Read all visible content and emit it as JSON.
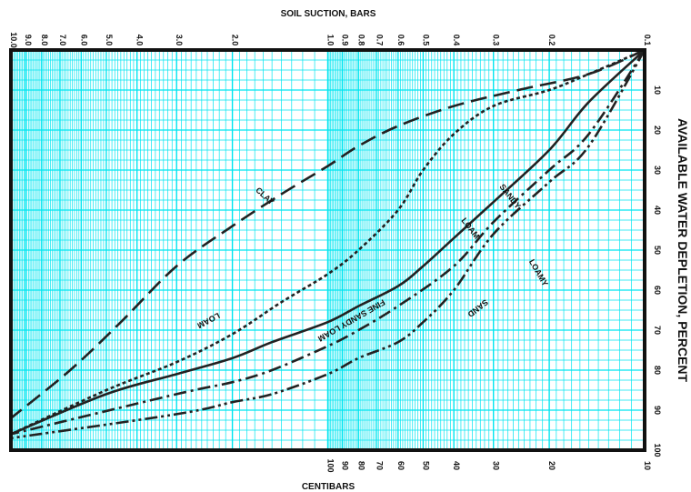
{
  "chart_data": {
    "type": "line",
    "title": "",
    "top_axis_label": "SOIL SUCTION, BARS",
    "bottom_axis_label": "CENTIBARS",
    "right_axis_label": "AVAILABLE WATER DEPLETION, PERCENT",
    "x_scale": "log",
    "x_range_bars": [
      0.1,
      10.0
    ],
    "y_range_percent": [
      0,
      100
    ],
    "grid": true,
    "grid_color": "#00e5f0",
    "frame_color": "#111111",
    "top_ticks": [
      {
        "value": 10.0,
        "label": "10.0"
      },
      {
        "value": 9.0,
        "label": "9.0"
      },
      {
        "value": 8.0,
        "label": "8.0"
      },
      {
        "value": 7.0,
        "label": "7.0"
      },
      {
        "value": 6.0,
        "label": "6.0"
      },
      {
        "value": 5.0,
        "label": "5.0"
      },
      {
        "value": 4.0,
        "label": "4.0"
      },
      {
        "value": 3.0,
        "label": "3.0"
      },
      {
        "value": 2.0,
        "label": "2.0"
      },
      {
        "value": 1.0,
        "label": "1.0"
      },
      {
        "value": 0.9,
        "label": "0.9"
      },
      {
        "value": 0.8,
        "label": "0.8"
      },
      {
        "value": 0.7,
        "label": "0.7"
      },
      {
        "value": 0.6,
        "label": "0.6"
      },
      {
        "value": 0.5,
        "label": "0.5"
      },
      {
        "value": 0.4,
        "label": "0.4"
      },
      {
        "value": 0.3,
        "label": "0.3"
      },
      {
        "value": 0.2,
        "label": "0.2"
      },
      {
        "value": 0.1,
        "label": "0.1"
      }
    ],
    "bottom_ticks": [
      {
        "value": 1.0,
        "label": "100"
      },
      {
        "value": 0.9,
        "label": "90"
      },
      {
        "value": 0.8,
        "label": "80"
      },
      {
        "value": 0.7,
        "label": "70"
      },
      {
        "value": 0.6,
        "label": "60"
      },
      {
        "value": 0.5,
        "label": "50"
      },
      {
        "value": 0.4,
        "label": "40"
      },
      {
        "value": 0.3,
        "label": "30"
      },
      {
        "value": 0.2,
        "label": "20"
      },
      {
        "value": 0.1,
        "label": "10"
      }
    ],
    "right_ticks": [
      {
        "value": 10,
        "label": "10"
      },
      {
        "value": 20,
        "label": "20"
      },
      {
        "value": 30,
        "label": "30"
      },
      {
        "value": 40,
        "label": "40"
      },
      {
        "value": 50,
        "label": "50"
      },
      {
        "value": 60,
        "label": "60"
      },
      {
        "value": 70,
        "label": "70"
      },
      {
        "value": 80,
        "label": "80"
      },
      {
        "value": 90,
        "label": "90"
      },
      {
        "value": 100,
        "label": "100"
      }
    ],
    "series": [
      {
        "name": "CLAY",
        "dash": "long",
        "points": [
          [
            0.1,
            0
          ],
          [
            0.15,
            6
          ],
          [
            0.25,
            10
          ],
          [
            0.4,
            14
          ],
          [
            0.6,
            19
          ],
          [
            0.8,
            24
          ],
          [
            1.0,
            29
          ],
          [
            1.4,
            36
          ],
          [
            2.0,
            44
          ],
          [
            3.0,
            54
          ],
          [
            4.5,
            68
          ],
          [
            6.5,
            80
          ],
          [
            10.0,
            92
          ]
        ]
      },
      {
        "name": "LOAM",
        "dash": "short",
        "points": [
          [
            0.1,
            0
          ],
          [
            0.15,
            6
          ],
          [
            0.2,
            10
          ],
          [
            0.3,
            14
          ],
          [
            0.4,
            21
          ],
          [
            0.5,
            30
          ],
          [
            0.6,
            40
          ],
          [
            0.8,
            50
          ],
          [
            1.0,
            56
          ],
          [
            1.4,
            63
          ],
          [
            2.0,
            71
          ],
          [
            3.0,
            78
          ],
          [
            5.0,
            85
          ],
          [
            10.0,
            96
          ]
        ]
      },
      {
        "name": "SANDY LOAM",
        "dash": "solid",
        "points": [
          [
            0.1,
            0
          ],
          [
            0.15,
            13
          ],
          [
            0.2,
            25
          ],
          [
            0.3,
            38
          ],
          [
            0.4,
            47
          ],
          [
            0.5,
            54
          ],
          [
            0.6,
            59
          ],
          [
            0.8,
            64
          ],
          [
            1.0,
            68
          ],
          [
            1.5,
            73
          ],
          [
            2.0,
            77
          ],
          [
            3.0,
            81
          ],
          [
            5.0,
            86
          ],
          [
            10.0,
            96
          ]
        ]
      },
      {
        "name": "FINE SANDY LOAM",
        "dash": "dashdot",
        "points": [
          [
            0.1,
            0
          ],
          [
            0.15,
            21
          ],
          [
            0.2,
            30
          ],
          [
            0.3,
            43
          ],
          [
            0.4,
            54
          ],
          [
            0.6,
            64
          ],
          [
            0.8,
            70
          ],
          [
            1.0,
            74
          ],
          [
            1.5,
            80
          ],
          [
            2.0,
            83
          ],
          [
            3.0,
            86
          ],
          [
            10.0,
            96
          ]
        ]
      },
      {
        "name": "LOAMY SAND",
        "dash": "dashdotdot",
        "points": [
          [
            0.1,
            0
          ],
          [
            0.15,
            24
          ],
          [
            0.2,
            33
          ],
          [
            0.3,
            46
          ],
          [
            0.4,
            60
          ],
          [
            0.5,
            68
          ],
          [
            0.6,
            73
          ],
          [
            0.8,
            77
          ],
          [
            1.0,
            81
          ],
          [
            1.5,
            86
          ],
          [
            2.0,
            88
          ],
          [
            3.0,
            91
          ],
          [
            10.0,
            97
          ]
        ]
      }
    ],
    "curve_labels": [
      {
        "text": "CLAY",
        "x": 1.6,
        "y": 37,
        "angle": 42
      },
      {
        "text": "LOAM",
        "x": 2.4,
        "y": 67,
        "angle": 152
      },
      {
        "text": "SANDY",
        "x": 0.27,
        "y": 37,
        "angle": 52
      },
      {
        "text": "LOAM",
        "x": 0.36,
        "y": 45,
        "angle": 52
      },
      {
        "text": "FINE SANDY LOAM",
        "x": 0.85,
        "y": 67,
        "angle": 150
      },
      {
        "text": "LOAMY",
        "x": 0.22,
        "y": 56,
        "angle": 60
      },
      {
        "text": "SAND",
        "x": 0.34,
        "y": 64,
        "angle": 142
      }
    ]
  }
}
